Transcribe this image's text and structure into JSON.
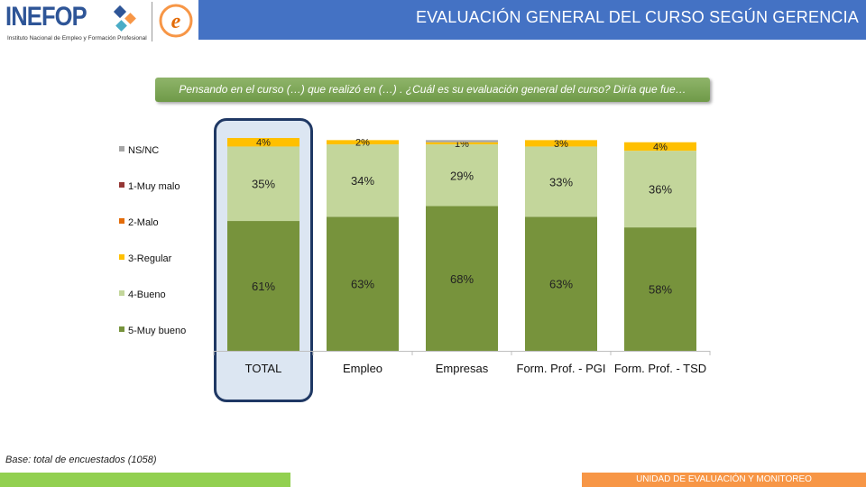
{
  "header": {
    "title": "EVALUACIÓN GENERAL DEL CURSO SEGÚN GERENCIA",
    "logo_name": "INEFOP",
    "logo_subtitle": "Instituto Nacional de Empleo y Formación Profesional",
    "logo2_letter": "e"
  },
  "question": "Pensando en el curso (…) que realizó en (…) . ¿Cuál es su evaluación general del curso? Diría que fue…",
  "footer": {
    "base_note": "Base: total de encuestados (1058)",
    "unit": "UNIDAD DE EVALUACIÓN Y MONITOREO"
  },
  "colors": {
    "muy_bueno": "#77933c",
    "bueno": "#c3d69b",
    "regular": "#ffc000",
    "malo": "#e36c09",
    "muy_malo": "#953735",
    "nsnc": "#a6a6a6",
    "title_bar": "#4472c4",
    "highlight_border": "#1f3864"
  },
  "chart_data": {
    "type": "bar",
    "stacked": true,
    "percent_stacked": true,
    "categories": [
      "TOTAL",
      "Empleo",
      "Empresas",
      "Form. Prof. - PGI",
      "Form. Prof. - TSD"
    ],
    "series": [
      {
        "name": "5-Muy bueno",
        "values": [
          61,
          63,
          68,
          63,
          58
        ],
        "labels": [
          "61%",
          "63%",
          "68%",
          "63%",
          "58%"
        ]
      },
      {
        "name": "4-Bueno",
        "values": [
          35,
          34,
          29,
          33,
          36
        ],
        "labels": [
          "35%",
          "34%",
          "29%",
          "33%",
          "36%"
        ]
      },
      {
        "name": "3-Regular",
        "values": [
          4,
          2,
          1,
          3,
          4
        ],
        "labels": [
          "4%",
          "2%",
          "1%",
          "3%",
          "4%"
        ]
      },
      {
        "name": "2-Malo",
        "values": [
          0,
          0,
          0,
          0,
          0
        ],
        "labels": [
          "",
          "",
          "",
          "",
          ""
        ]
      },
      {
        "name": "1-Muy malo",
        "values": [
          0,
          0,
          0,
          0,
          0
        ],
        "labels": [
          "",
          "",
          "",
          "",
          ""
        ]
      },
      {
        "name": "NS/NC",
        "values": [
          0,
          0,
          1,
          0,
          0
        ],
        "labels": [
          "",
          "",
          "",
          "",
          ""
        ]
      }
    ],
    "legend_order": [
      "NS/NC",
      "1-Muy malo",
      "2-Malo",
      "3-Regular",
      "4-Bueno",
      "5-Muy bueno"
    ],
    "legend_position": "left",
    "highlighted_category": "TOTAL",
    "ylim": [
      0,
      100
    ],
    "grid": false
  }
}
